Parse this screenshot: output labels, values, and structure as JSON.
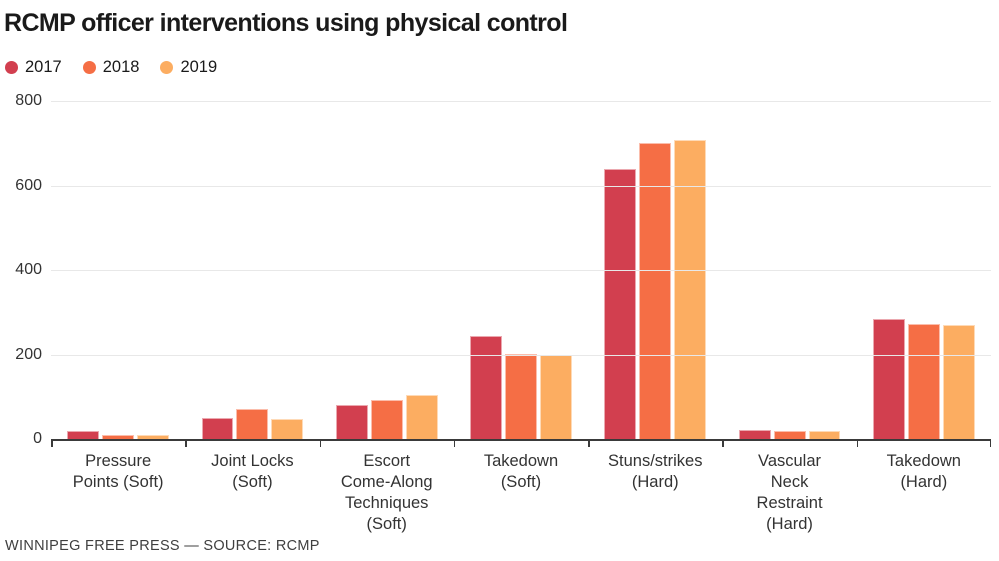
{
  "title": "RCMP officer interventions using physical control",
  "footer": "WINNIPEG FREE PRESS — SOURCE: RCMP",
  "colors": {
    "axis": "#3a3a3a",
    "gridline": "#e8e8e8",
    "text": "#333333",
    "title_text": "#1a1a1a"
  },
  "chart_data": {
    "type": "bar",
    "title": "RCMP officer interventions using physical control",
    "categories": [
      "Pressure Points (Soft)",
      "Joint Locks (Soft)",
      "Escort Come-Along Techniques (Soft)",
      "Takedown (Soft)",
      "Stuns/strikes (Hard)",
      "Vascular Neck Restraint (Hard)",
      "Takedown (Hard)"
    ],
    "category_label_lines": [
      [
        "Pressure",
        "Points (Soft)"
      ],
      [
        "Joint Locks",
        "(Soft)"
      ],
      [
        "Escort",
        "Come-Along",
        "Techniques",
        "(Soft)"
      ],
      [
        "Takedown",
        "(Soft)"
      ],
      [
        "Stuns/strikes",
        "(Hard)"
      ],
      [
        "Vascular",
        "Neck",
        "Restraint",
        "(Hard)"
      ],
      [
        "Takedown",
        "(Hard)"
      ]
    ],
    "series": [
      {
        "name": "2017",
        "color": "#d23f4f",
        "values": [
          20,
          50,
          80,
          245,
          640,
          22,
          285
        ]
      },
      {
        "name": "2018",
        "color": "#f56e45",
        "values": [
          9,
          70,
          92,
          202,
          700,
          18,
          272
        ]
      },
      {
        "name": "2019",
        "color": "#fcad61",
        "values": [
          10,
          47,
          105,
          200,
          708,
          20,
          270
        ]
      }
    ],
    "xlabel": "",
    "ylabel": "",
    "ylim": [
      0,
      800
    ],
    "yticks": [
      0,
      200,
      400,
      600,
      800
    ],
    "grid": "horizontal",
    "legend_position": "top-left"
  }
}
